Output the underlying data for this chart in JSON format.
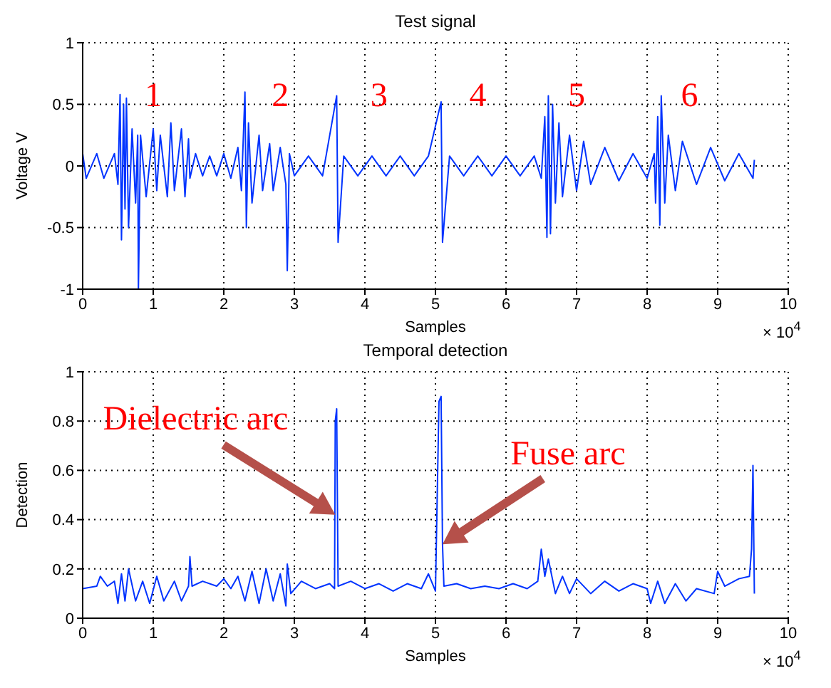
{
  "chart_data": [
    {
      "type": "line",
      "title": "Test signal",
      "xlabel": "Samples",
      "ylabel": "Voltage V",
      "xlim": [
        0,
        10
      ],
      "xticks": [
        0,
        1,
        2,
        3,
        4,
        5,
        6,
        7,
        8,
        9,
        10
      ],
      "ylim": [
        -1,
        1
      ],
      "yticks": [
        -1,
        -0.5,
        0,
        0.5,
        1
      ],
      "grid": true,
      "legend": false,
      "marker": "none",
      "annotations": [
        "1",
        "2",
        "3",
        "4",
        "5",
        "6",
        "× 10$^{4}$"
      ],
      "series": [
        {
          "color": "#0033ff",
          "x": [
            0,
            0.05,
            0.2,
            0.3,
            0.45,
            0.5,
            0.53,
            0.55,
            0.58,
            0.6,
            0.62,
            0.65,
            0.7,
            0.75,
            0.78,
            0.79,
            0.82,
            0.9,
            1.0,
            1.05,
            1.1,
            1.2,
            1.25,
            1.3,
            1.4,
            1.45,
            1.5,
            1.52,
            1.6,
            1.7,
            1.8,
            1.9,
            2.0,
            2.1,
            2.2,
            2.25,
            2.3,
            2.32,
            2.35,
            2.4,
            2.5,
            2.55,
            2.65,
            2.7,
            2.8,
            2.88,
            2.9,
            2.93,
            3.0,
            3.2,
            3.4,
            3.6,
            3.62,
            3.7,
            3.9,
            4.1,
            4.3,
            4.5,
            4.7,
            4.9,
            5.08,
            5.1,
            5.2,
            5.4,
            5.6,
            5.8,
            6.0,
            6.2,
            6.4,
            6.5,
            6.55,
            6.58,
            6.6,
            6.63,
            6.66,
            6.7,
            6.75,
            6.8,
            6.9,
            7.0,
            7.1,
            7.2,
            7.4,
            7.6,
            7.8,
            8.0,
            8.1,
            8.12,
            8.15,
            8.18,
            8.2,
            8.25,
            8.3,
            8.4,
            8.5,
            8.7,
            8.9,
            9.1,
            9.3,
            9.5,
            9.52
          ],
          "values": [
            0.1,
            -0.1,
            0.1,
            -0.1,
            0.1,
            -0.15,
            0.58,
            -0.6,
            0.5,
            -0.35,
            0.55,
            -0.5,
            0.3,
            -0.3,
            0.25,
            -1.0,
            0.25,
            -0.25,
            0.3,
            -0.2,
            0.25,
            -0.25,
            0.35,
            -0.2,
            0.3,
            -0.25,
            0.22,
            -0.1,
            0.1,
            -0.08,
            0.08,
            -0.08,
            0.1,
            -0.1,
            0.15,
            -0.2,
            0.6,
            -0.5,
            0.35,
            -0.3,
            0.25,
            -0.2,
            0.18,
            -0.2,
            0.15,
            -0.15,
            -0.85,
            0.1,
            -0.08,
            0.08,
            -0.08,
            0.57,
            -0.62,
            0.08,
            -0.08,
            0.08,
            -0.08,
            0.08,
            -0.08,
            0.08,
            0.52,
            -0.62,
            0.08,
            -0.08,
            0.08,
            -0.08,
            0.08,
            -0.08,
            0.08,
            -0.1,
            0.4,
            -0.58,
            0.57,
            -0.55,
            0.5,
            -0.3,
            0.35,
            -0.25,
            0.25,
            -0.2,
            0.2,
            -0.15,
            0.15,
            -0.12,
            0.1,
            -0.1,
            0.1,
            -0.3,
            0.4,
            -0.48,
            0.57,
            -0.3,
            0.25,
            -0.2,
            0.2,
            -0.15,
            0.15,
            -0.12,
            0.1,
            -0.1,
            0.05
          ]
        }
      ]
    },
    {
      "type": "line",
      "title": "Temporal detection",
      "xlabel": "Samples",
      "ylabel": "Detection",
      "xlim": [
        0,
        10
      ],
      "xticks": [
        0,
        1,
        2,
        3,
        4,
        5,
        6,
        7,
        8,
        9,
        10
      ],
      "ylim": [
        0,
        1
      ],
      "yticks": [
        0,
        0.2,
        0.4,
        0.6,
        0.8,
        1
      ],
      "grid": true,
      "legend": false,
      "marker": "none",
      "annotations": [
        {
          "text": "Dielectric arc",
          "x": 3.58,
          "y": 0.42
        },
        {
          "text": "Fuse arc",
          "x": 5.1,
          "y": 0.3
        },
        "× 10$^{4}$"
      ],
      "series": [
        {
          "color": "#0033ff",
          "x": [
            0,
            0.2,
            0.25,
            0.35,
            0.45,
            0.5,
            0.55,
            0.6,
            0.65,
            0.75,
            0.85,
            0.95,
            1.05,
            1.15,
            1.3,
            1.4,
            1.5,
            1.52,
            1.55,
            1.7,
            1.9,
            2.0,
            2.1,
            2.2,
            2.3,
            2.4,
            2.5,
            2.6,
            2.7,
            2.8,
            2.88,
            2.9,
            2.95,
            3.1,
            3.3,
            3.5,
            3.57,
            3.58,
            3.6,
            3.62,
            3.8,
            4.0,
            4.2,
            4.4,
            4.6,
            4.8,
            4.9,
            5.0,
            5.05,
            5.08,
            5.1,
            5.12,
            5.3,
            5.5,
            5.7,
            5.9,
            6.1,
            6.3,
            6.45,
            6.5,
            6.55,
            6.6,
            6.7,
            6.8,
            6.9,
            7.0,
            7.2,
            7.4,
            7.6,
            7.8,
            8.0,
            8.05,
            8.15,
            8.25,
            8.4,
            8.55,
            8.7,
            8.95,
            9.0,
            9.1,
            9.3,
            9.45,
            9.48,
            9.5,
            9.52
          ],
          "values": [
            0.12,
            0.13,
            0.17,
            0.13,
            0.15,
            0.06,
            0.18,
            0.07,
            0.2,
            0.07,
            0.15,
            0.06,
            0.17,
            0.07,
            0.15,
            0.07,
            0.13,
            0.25,
            0.13,
            0.15,
            0.13,
            0.16,
            0.12,
            0.17,
            0.07,
            0.19,
            0.06,
            0.2,
            0.07,
            0.18,
            0.05,
            0.22,
            0.1,
            0.15,
            0.12,
            0.14,
            0.12,
            0.8,
            0.85,
            0.13,
            0.15,
            0.12,
            0.14,
            0.11,
            0.14,
            0.12,
            0.18,
            0.11,
            0.88,
            0.9,
            0.3,
            0.13,
            0.14,
            0.12,
            0.13,
            0.12,
            0.14,
            0.12,
            0.15,
            0.28,
            0.17,
            0.24,
            0.1,
            0.17,
            0.1,
            0.16,
            0.1,
            0.15,
            0.11,
            0.14,
            0.12,
            0.06,
            0.15,
            0.06,
            0.14,
            0.07,
            0.12,
            0.1,
            0.19,
            0.13,
            0.16,
            0.17,
            0.28,
            0.62,
            0.1
          ]
        }
      ]
    }
  ]
}
